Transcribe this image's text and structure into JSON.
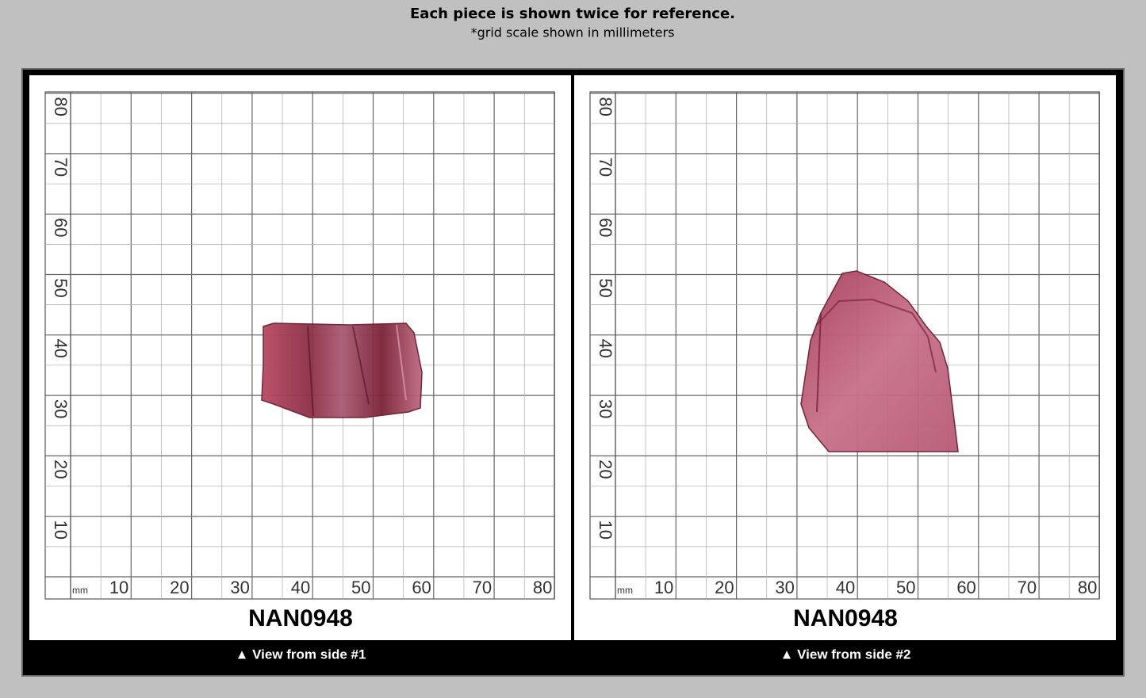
{
  "header": {
    "title": "Each piece is shown twice for reference.",
    "subtitle": "*grid scale shown in millimeters"
  },
  "panels": [
    {
      "unit": "mm",
      "x_labels": [
        "10",
        "20",
        "30",
        "40",
        "50",
        "60",
        "70",
        "80"
      ],
      "y_labels": [
        "10",
        "20",
        "30",
        "40",
        "50",
        "60",
        "70",
        "80"
      ],
      "name": "NAN0948",
      "caption": "▲ View from side #1"
    },
    {
      "unit": "mm",
      "x_labels": [
        "10",
        "20",
        "30",
        "40",
        "50",
        "60",
        "70",
        "80"
      ],
      "y_labels": [
        "10",
        "20",
        "30",
        "40",
        "50",
        "60",
        "70",
        "80"
      ],
      "name": "NAN0948",
      "caption": "▲ View from side #2"
    }
  ]
}
